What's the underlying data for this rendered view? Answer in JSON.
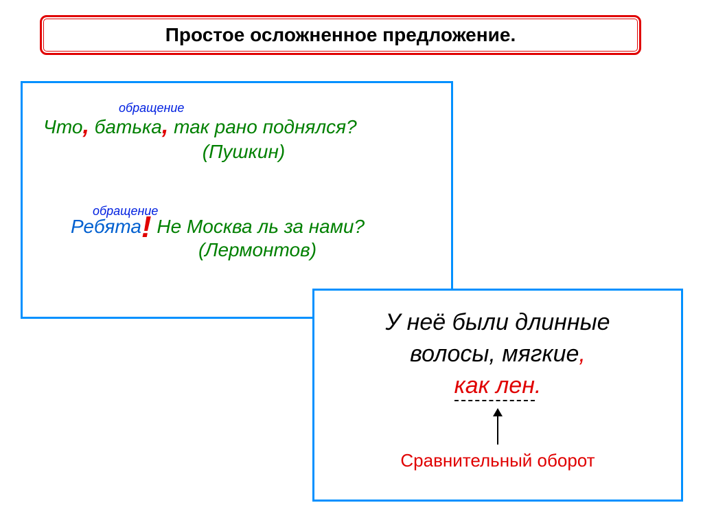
{
  "title": "Простое осложненное предложение.",
  "box1": {
    "ex1": {
      "label": "обращение",
      "part1": "Что",
      "comma1": ",",
      "part2": " батька",
      "comma2": ",",
      "part3": " так рано поднялся?",
      "author": "(Пушкин)"
    },
    "ex2": {
      "label": "обращение",
      "part1": "Ребята",
      "excl": "!",
      "part2": " Не Москва ль за нами?",
      "author": "(Лермонтов)"
    }
  },
  "box2": {
    "line1": "У неё были длинные",
    "line2a": "волосы, мягкие",
    "line2b": ",",
    "line3": "как лен",
    "dot": ".",
    "caption": "Сравнительный оборот"
  },
  "colors": {
    "red": "#e00000",
    "blue_border": "#0090ff",
    "green": "#008000",
    "blue_text": "#0060d0",
    "label_blue": "#0020e0",
    "black": "#000000",
    "bg": "#ffffff"
  }
}
